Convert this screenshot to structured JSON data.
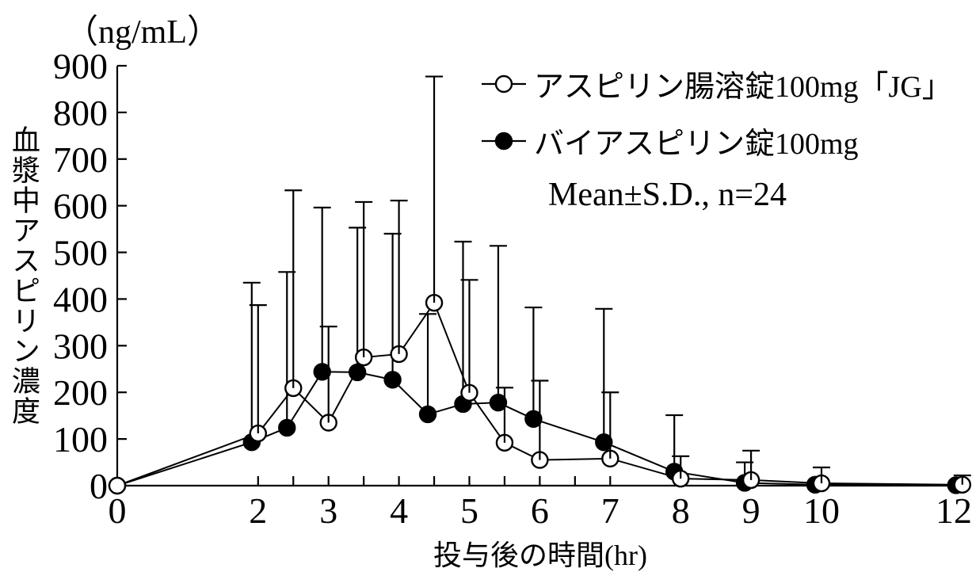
{
  "figure": {
    "y_unit_label": "（ng/mL）",
    "y_axis_title": "血漿中アスピリン濃度",
    "x_axis_title": "投与後の時間(hr)",
    "annotation": "Mean±S.D., n=24",
    "colors": {
      "foreground": "#000000",
      "background": "#ffffff"
    }
  },
  "chart_data": {
    "type": "line",
    "title": "",
    "xlabel": "投与後の時間(hr)",
    "ylabel": "血漿中アスピリン濃度 (ng/mL)",
    "xlim": [
      0,
      12
    ],
    "ylim": [
      0,
      900
    ],
    "grid": false,
    "legend_position": "top-right",
    "annotation": "Mean±S.D., n=24",
    "x": [
      0,
      2,
      2.5,
      3,
      3.5,
      4,
      4.5,
      5,
      5.5,
      6,
      7,
      8,
      9,
      10,
      12
    ],
    "x_minor_ticks": [
      2,
      2.5,
      3,
      3.5,
      4,
      4.5,
      5,
      5.5,
      6,
      6.5,
      7,
      8,
      9,
      10,
      12
    ],
    "x_tick_labels": [
      0,
      2,
      3,
      4,
      5,
      6,
      7,
      8,
      9,
      10,
      12
    ],
    "y_ticks": [
      0,
      100,
      200,
      300,
      400,
      500,
      600,
      700,
      800,
      900
    ],
    "error_bar_direction": "up",
    "series": [
      {
        "name": "バイアスピリン錠100mg",
        "marker": "filled-circle",
        "values": [
          0,
          93,
          124,
          244,
          243,
          227,
          153,
          175,
          178,
          143,
          93,
          30,
          6,
          2,
          1
        ],
        "sd": [
          0,
          342,
          334,
          352,
          310,
          313,
          215,
          348,
          336,
          239,
          286,
          121,
          44,
          0,
          0
        ]
      },
      {
        "name": "アスピリン腸溶錠100mg「JG」",
        "marker": "open-circle",
        "values": [
          0,
          112,
          209,
          135,
          275,
          282,
          392,
          199,
          92,
          55,
          58,
          15,
          12,
          5,
          2
        ],
        "sd": [
          0,
          275,
          424,
          206,
          333,
          329,
          485,
          242,
          118,
          170,
          142,
          48,
          63,
          34,
          20
        ]
      }
    ]
  }
}
